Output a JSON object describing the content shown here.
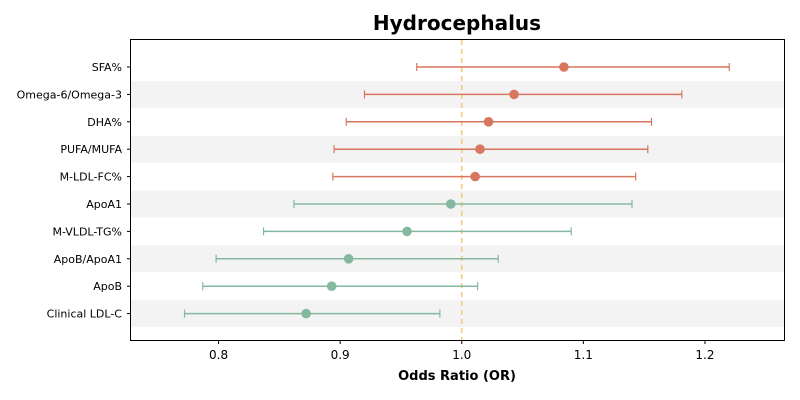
{
  "colors": {
    "risk": "#d9765f",
    "protective": "#84b9a0",
    "reference": "#f5c97a",
    "band": "#f3f3f3"
  },
  "chart_data": {
    "type": "forest",
    "title": "Hydrocephalus",
    "xlabel": "Odds Ratio (OR)",
    "xlim": [
      0.728,
      1.265
    ],
    "xticks": [
      "0.8",
      "0.9",
      "1.0",
      "1.1",
      "1.2"
    ],
    "reference_line": 1.0,
    "grid": false,
    "rows": [
      {
        "label": "SFA%",
        "or": 1.084,
        "lower": 0.963,
        "upper": 1.22,
        "group": "risk"
      },
      {
        "label": "Omega-6/Omega-3",
        "or": 1.043,
        "lower": 0.92,
        "upper": 1.181,
        "group": "risk"
      },
      {
        "label": "DHA%",
        "or": 1.022,
        "lower": 0.905,
        "upper": 1.156,
        "group": "risk"
      },
      {
        "label": "PUFA/MUFA",
        "or": 1.015,
        "lower": 0.895,
        "upper": 1.153,
        "group": "risk"
      },
      {
        "label": "M-LDL-FC%",
        "or": 1.011,
        "lower": 0.894,
        "upper": 1.143,
        "group": "risk"
      },
      {
        "label": "ApoA1",
        "or": 0.991,
        "lower": 0.862,
        "upper": 1.14,
        "group": "protective"
      },
      {
        "label": "M-VLDL-TG%",
        "or": 0.955,
        "lower": 0.837,
        "upper": 1.09,
        "group": "protective"
      },
      {
        "label": "ApoB/ApoA1",
        "or": 0.907,
        "lower": 0.798,
        "upper": 1.03,
        "group": "protective"
      },
      {
        "label": "ApoB",
        "or": 0.893,
        "lower": 0.787,
        "upper": 1.013,
        "group": "protective"
      },
      {
        "label": "Clinical LDL-C",
        "or": 0.872,
        "lower": 0.772,
        "upper": 0.982,
        "group": "protective"
      }
    ]
  }
}
